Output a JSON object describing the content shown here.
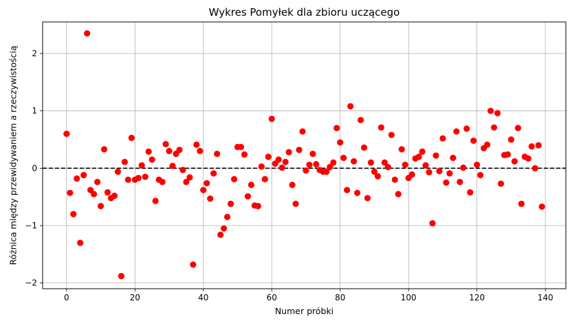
{
  "chart_data": {
    "type": "scatter",
    "title": "Wykres Pomyłek dla zbioru uczącego",
    "xlabel": "Numer próbki",
    "ylabel": "Różnica między przewidywaniem a rzeczywistością",
    "xlim": [
      -7,
      146
    ],
    "ylim": [
      -2.1,
      2.55
    ],
    "xticks": [
      0,
      20,
      40,
      60,
      80,
      100,
      120,
      140
    ],
    "yticks": [
      -2,
      -1,
      0,
      1,
      2
    ],
    "grid": true,
    "reference_line": {
      "y": 0,
      "style": "dashed",
      "color": "#000000"
    },
    "marker_color": "#ff0000",
    "series": [
      {
        "x": [
          0,
          1,
          2,
          3,
          4,
          5,
          6,
          7,
          8,
          9,
          10,
          11,
          12,
          13,
          14,
          15,
          16,
          17,
          18,
          19,
          20,
          21,
          22,
          23,
          24,
          25,
          26,
          27,
          28,
          29,
          30,
          31,
          32,
          33,
          34,
          35,
          36,
          37,
          38,
          39,
          40,
          41,
          42,
          43,
          44,
          45,
          46,
          47,
          48,
          49,
          50,
          51,
          52,
          53,
          54,
          55,
          56,
          57,
          58,
          59,
          60,
          61,
          62,
          63,
          64,
          65,
          66,
          67,
          68,
          69,
          70,
          71,
          72,
          73,
          74,
          75,
          76,
          77,
          78,
          79,
          80,
          81,
          82,
          83,
          84,
          85,
          86,
          87,
          88,
          89,
          90,
          91,
          92,
          93,
          94,
          95,
          96,
          97,
          98,
          99,
          100,
          101,
          102,
          103,
          104,
          105,
          106,
          107,
          108,
          109,
          110,
          111,
          112,
          113,
          114,
          115,
          116,
          117,
          118,
          119,
          120,
          121,
          122,
          123,
          124,
          125,
          126,
          127,
          128,
          129,
          130,
          131,
          132,
          133,
          134,
          135,
          136,
          137,
          138,
          139
        ],
        "y": [
          0.6,
          -0.43,
          -0.8,
          -0.18,
          -1.3,
          -0.12,
          2.35,
          -0.38,
          -0.45,
          -0.24,
          -0.66,
          0.33,
          -0.42,
          -0.52,
          -0.48,
          -0.06,
          -1.88,
          0.11,
          -0.2,
          0.53,
          -0.2,
          -0.17,
          0.05,
          -0.15,
          0.29,
          0.15,
          -0.57,
          -0.2,
          -0.24,
          0.42,
          0.3,
          0.04,
          0.25,
          0.32,
          -0.03,
          -0.24,
          -0.16,
          -1.68,
          0.41,
          0.3,
          -0.38,
          -0.26,
          -0.53,
          -0.09,
          0.25,
          -1.16,
          -1.05,
          -0.85,
          -0.62,
          -0.19,
          0.37,
          0.37,
          0.24,
          -0.49,
          -0.29,
          -0.65,
          -0.66,
          0.03,
          -0.19,
          0.2,
          0.86,
          0.08,
          0.15,
          0.01,
          0.11,
          0.28,
          -0.29,
          -0.62,
          0.32,
          0.64,
          -0.04,
          0.06,
          0.25,
          0.07,
          -0.03,
          -0.06,
          -0.06,
          0.02,
          0.1,
          0.7,
          0.45,
          0.18,
          -0.38,
          1.08,
          0.12,
          -0.43,
          0.84,
          0.36,
          -0.52,
          0.1,
          -0.06,
          -0.14,
          0.71,
          0.1,
          0.02,
          0.58,
          -0.2,
          -0.45,
          0.33,
          0.06,
          -0.17,
          -0.11,
          0.17,
          0.2,
          0.29,
          0.05,
          -0.07,
          -0.96,
          0.22,
          -0.05,
          0.52,
          -0.25,
          -0.09,
          0.18,
          0.64,
          -0.24,
          0.01,
          0.69,
          -0.42,
          0.48,
          0.06,
          -0.12,
          0.35,
          0.41,
          1.0,
          0.71,
          0.96,
          -0.27,
          0.23,
          0.24,
          0.5,
          0.12,
          0.7,
          -0.62,
          0.2,
          0.17,
          0.38,
          0.0,
          0.4,
          -0.67
        ]
      }
    ]
  }
}
